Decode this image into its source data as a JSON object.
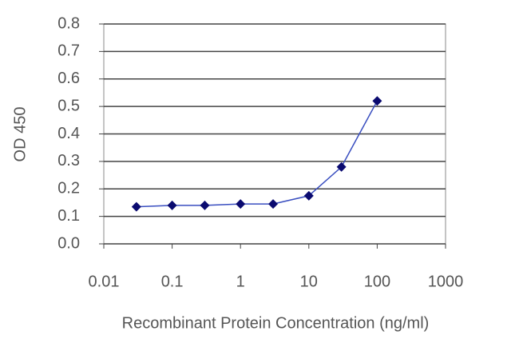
{
  "chart_data": {
    "type": "line",
    "x": [
      0.03,
      0.1,
      0.3,
      1,
      3,
      10,
      30,
      100
    ],
    "values": [
      0.135,
      0.14,
      0.14,
      0.145,
      0.145,
      0.175,
      0.28,
      0.52
    ],
    "line_color": "#3a4fc0",
    "marker_color": "#0a0a70",
    "x_label": "Recombinant Protein Concentration (ng/ml)",
    "y_label": "OD 450",
    "xlim": [
      0.01,
      1000
    ],
    "xticks": [
      0.01,
      0.1,
      1,
      10,
      100,
      1000
    ],
    "x_log": true,
    "ylim": [
      0,
      0.8
    ],
    "yticks": [
      {
        "value": 0,
        "label": "0.0"
      },
      0.1,
      0.2,
      0.3,
      0.4,
      0.5,
      0.6,
      0.7,
      0.8
    ],
    "grid": true
  }
}
